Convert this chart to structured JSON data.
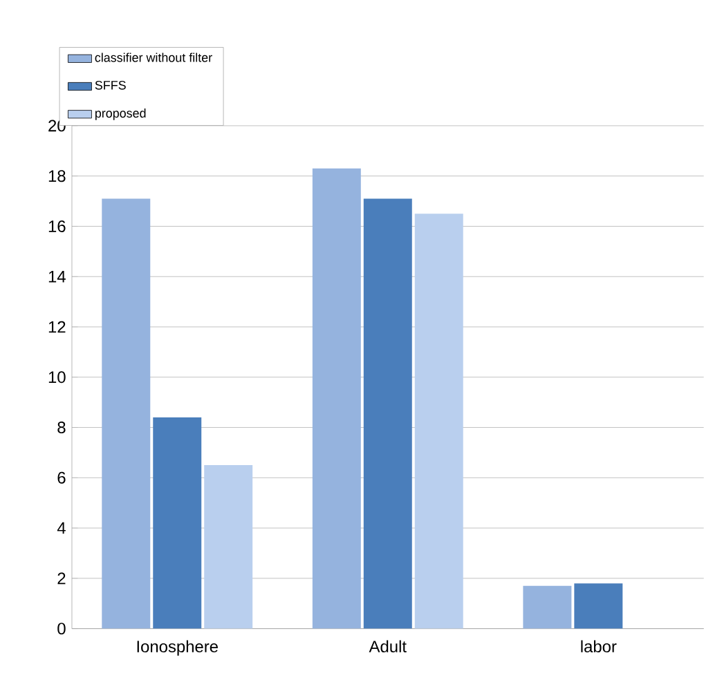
{
  "chart_data": {
    "type": "bar",
    "categories": [
      "Ionosphere",
      "Adult",
      "labor"
    ],
    "series": [
      {
        "name": "classifier without filter",
        "color": "#95b3de",
        "values": [
          17.1,
          18.3,
          1.7
        ]
      },
      {
        "name": "SFFS",
        "color": "#4a7ebb",
        "values": [
          8.4,
          17.1,
          1.8
        ]
      },
      {
        "name": "proposed",
        "color": "#b9cfee",
        "values": [
          6.5,
          16.5,
          null
        ]
      }
    ],
    "ylim": [
      0,
      20
    ],
    "yticks": [
      0,
      2,
      4,
      6,
      8,
      10,
      12,
      14,
      16,
      18,
      20
    ],
    "grid": "y",
    "legend": "top left"
  }
}
